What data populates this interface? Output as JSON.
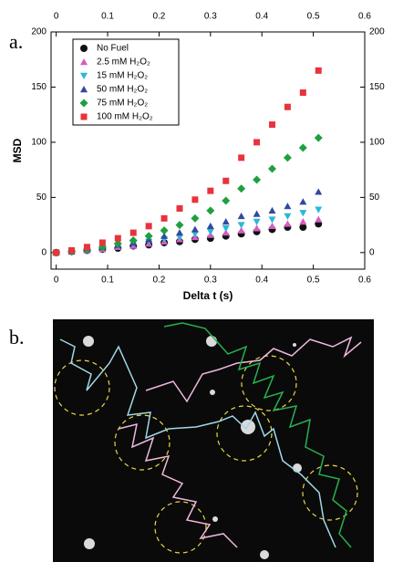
{
  "panels": {
    "a": "a.",
    "b": "b."
  },
  "chart_data": {
    "type": "scatter",
    "x_label": "Delta t (s)",
    "y_label": "MSD",
    "x": [
      0,
      0.03,
      0.06,
      0.09,
      0.12,
      0.15,
      0.18,
      0.21,
      0.24,
      0.27,
      0.3,
      0.33,
      0.36,
      0.39,
      0.42,
      0.45,
      0.48,
      0.51
    ],
    "xlim": [
      -0.01,
      0.6
    ],
    "xticks": [
      0,
      0.1,
      0.2,
      0.3,
      0.4,
      0.5,
      0.6
    ],
    "ylim": [
      -15,
      200
    ],
    "yticks": [
      0,
      50,
      100,
      150,
      200
    ],
    "legend": "upper left",
    "series": [
      {
        "name": "No Fuel",
        "color": "#111111",
        "marker": "circle",
        "values": [
          0,
          1,
          2,
          3,
          4,
          6,
          7,
          9,
          10,
          12,
          13,
          15,
          17,
          19,
          21,
          23,
          23,
          26
        ]
      },
      {
        "name": "2.5 mM H₂O₂",
        "color": "#d65bc4",
        "marker": "triangle-up",
        "values": [
          0,
          1,
          2,
          3,
          5,
          6,
          8,
          10,
          12,
          14,
          16,
          18,
          20,
          22,
          24,
          26,
          28,
          30
        ]
      },
      {
        "name": "15 mM H₂O₂",
        "color": "#29b8d8",
        "marker": "triangle-down",
        "values": [
          0,
          1,
          2,
          4,
          6,
          8,
          10,
          12,
          14,
          17,
          19,
          22,
          25,
          28,
          30,
          33,
          36,
          39
        ]
      },
      {
        "name": "50 mM H₂O₂",
        "color": "#3448a0",
        "marker": "triangle-up",
        "values": [
          0,
          1,
          3,
          5,
          7,
          9,
          12,
          15,
          18,
          21,
          24,
          28,
          33,
          35,
          38,
          42,
          46,
          55
        ]
      },
      {
        "name": "75 mM H₂O₂",
        "color": "#1ea040",
        "marker": "diamond",
        "values": [
          0,
          1,
          3,
          5,
          8,
          11,
          15,
          20,
          25,
          31,
          38,
          47,
          58,
          66,
          76,
          86,
          95,
          104
        ]
      },
      {
        "name": "100 mM H₂O₂",
        "color": "#e8333d",
        "marker": "square",
        "values": [
          0,
          2,
          5,
          9,
          13,
          18,
          24,
          31,
          40,
          48,
          56,
          65,
          86,
          100,
          116,
          132,
          145,
          165
        ]
      }
    ]
  }
}
